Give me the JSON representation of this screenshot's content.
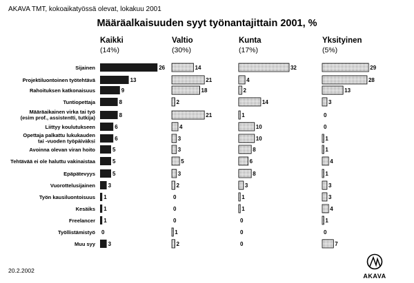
{
  "source": "AKAVA TMT, kokoaikatyössä olevat, lokakuu 2001",
  "date": "20.2.2002",
  "logo_text": "AKAVA",
  "colors": {
    "kaikki_fill": "#1a1a1a",
    "pattern_dots": "#555555",
    "outline": "#000000"
  },
  "chart_data": {
    "type": "bar",
    "orientation": "horizontal",
    "title": "Määräalkaisuuden syyt työnantajittain 2001, %",
    "categories": [
      [
        "Sijainen"
      ],
      [
        "Projektiluontoinen työtehtävä"
      ],
      [
        "Rahoituksen katkonaisuus"
      ],
      [
        "Tuntiopettaja"
      ],
      [
        "Määräaikainen virka tai työ",
        "(esim prof., assistentti, tutkija)"
      ],
      [
        "Liittyy koulutukseen"
      ],
      [
        "Opettaja palkattu lukukauden",
        "tai -vuoden työpäiväksi"
      ],
      [
        "Avoinna olevan viran hoito"
      ],
      [
        "Tehtävää ei ole haluttu vakinaistaa"
      ],
      [
        "Epäpätevyys"
      ],
      [
        "Vuorottelusijainen"
      ],
      [
        "Työn kausiluontoisuus"
      ],
      [
        "Kesäiks"
      ],
      [
        "Freelancer"
      ],
      [
        "Työllistämistyö"
      ],
      [
        "Muu syy"
      ]
    ],
    "series": [
      {
        "name": "Kaikki",
        "share": "(14%)",
        "fill": "solid",
        "values": [
          26,
          13,
          9,
          8,
          8,
          6,
          6,
          5,
          5,
          5,
          3,
          1,
          1,
          1,
          0,
          3
        ]
      },
      {
        "name": "Valtio",
        "share": "(30%)",
        "fill": "dotted",
        "values": [
          14,
          21,
          18,
          2,
          21,
          4,
          3,
          3,
          5,
          3,
          2,
          0,
          0,
          0,
          1,
          2
        ]
      },
      {
        "name": "Kunta",
        "share": "(17%)",
        "fill": "dotted",
        "values": [
          32,
          4,
          2,
          14,
          1,
          10,
          10,
          8,
          6,
          8,
          3,
          1,
          1,
          0,
          0,
          0
        ]
      },
      {
        "name": "Yksityinen",
        "share": "(5%)",
        "fill": "dotted",
        "values": [
          29,
          28,
          13,
          3,
          0,
          0,
          1,
          1,
          4,
          1,
          3,
          3,
          4,
          1,
          0,
          7
        ]
      }
    ]
  }
}
